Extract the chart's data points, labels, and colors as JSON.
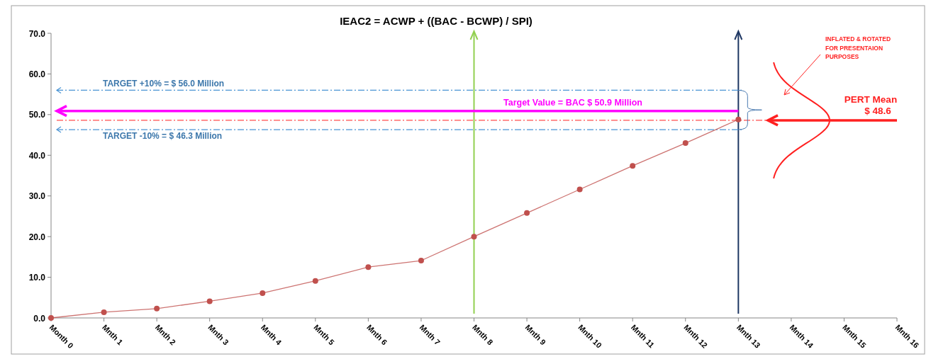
{
  "chart_data": {
    "type": "line",
    "title": "IEAC2 = ACWP + ((BAC - BCWP) / SPI)",
    "categories": [
      "Month 0",
      "Mnth 1",
      "Mnth 2",
      "Mnth 3",
      "Mnth 4",
      "Mnth 5",
      "Mnth 6",
      "Mnth 7",
      "Mnth 8",
      "Mnth 9",
      "Mnth 10",
      "Mnth 11",
      "Mnth 12",
      "Mnth 13",
      "Mnth 14",
      "Mnth 15",
      "Mnth 16"
    ],
    "series": [
      {
        "color": "#c0504d",
        "values": [
          0,
          1.4,
          2.3,
          4.1,
          6.1,
          9.1,
          12.5,
          14.1,
          20.0,
          25.8,
          31.6,
          37.4,
          43.0,
          48.8,
          null,
          null,
          null
        ]
      }
    ],
    "ylim": [
      0,
      70
    ],
    "yticks": [
      {
        "value": 0,
        "label": "0.0"
      },
      {
        "value": 10,
        "label": "10.0"
      },
      {
        "value": 20,
        "label": "20.0"
      },
      {
        "value": 30,
        "label": "30.0"
      },
      {
        "value": 40,
        "label": "40.0"
      },
      {
        "value": 50,
        "label": "50.0"
      },
      {
        "value": 60,
        "label": "60.0"
      },
      {
        "value": 70,
        "label": "70.0"
      }
    ],
    "marker": "circle",
    "line_style": "solid",
    "ref_lines": [
      {
        "axis": "y",
        "value": 56.0,
        "label": "TARGET  +10% = $ 56.0 Million",
        "color": "#4a94d4",
        "line_style": "dashed"
      },
      {
        "axis": "y",
        "value": 46.3,
        "label": "TARGET  -10% = $ 46.3 Million",
        "color": "#4a94d4",
        "line_style": "dashed"
      },
      {
        "axis": "y",
        "value": 50.9,
        "label": "Target Value = BAC  $ 50.9 Million",
        "color": "#ff00ff",
        "line_style": "solid"
      },
      {
        "axis": "y",
        "value": 48.6,
        "label": "PERT Mean\n$ 48.6",
        "color": "#ff2020",
        "line_style": "dashed"
      },
      {
        "axis": "x",
        "value": "Mnth 8",
        "color": "#92d050",
        "line_style": "solid"
      },
      {
        "axis": "x",
        "value": "Mnth 13",
        "color": "#1f3864",
        "line_style": "solid"
      }
    ],
    "annotations": [
      "INFLATED & ROTATED FOR PRESENTAION PURPOSES"
    ]
  }
}
